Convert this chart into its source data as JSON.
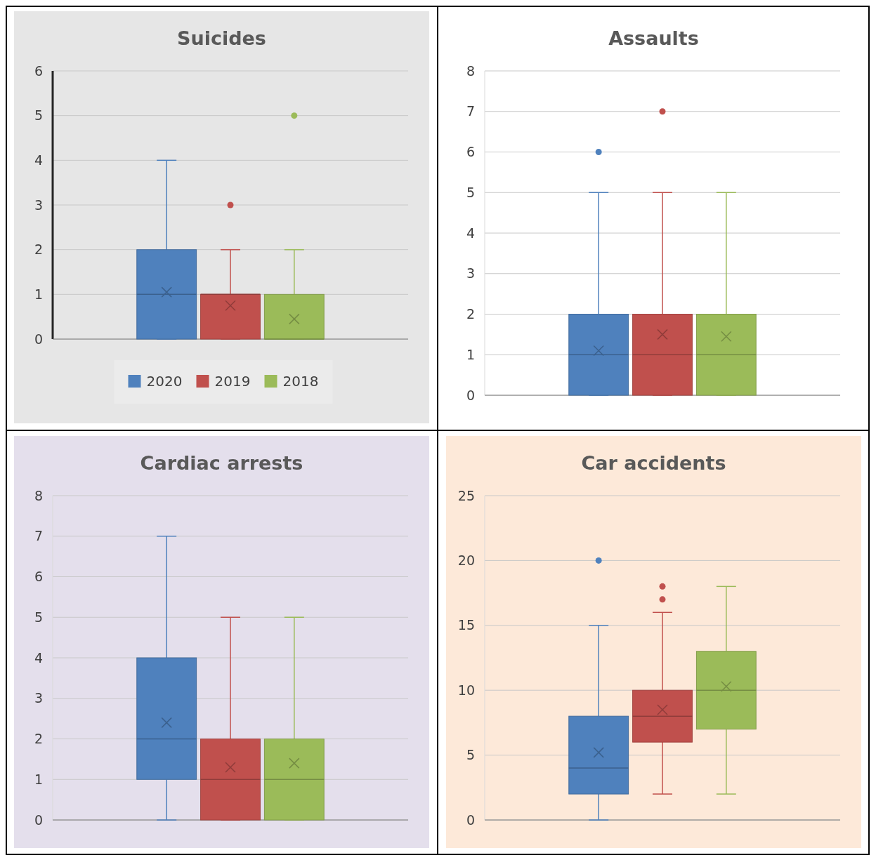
{
  "chart_data": [
    {
      "type": "box",
      "title": "Suicides",
      "categories": [
        null
      ],
      "ylim": [
        0,
        6
      ],
      "yticks": [
        0,
        1,
        2,
        3,
        4,
        5,
        6
      ],
      "grid": "y",
      "legend": "bottom",
      "series": [
        {
          "name": "2020",
          "color": "#4f81bd",
          "boxes": [
            {
              "low": 0,
              "q1": 0,
              "median": 1,
              "q3": 2,
              "high": 4,
              "mean": 1.05
            }
          ]
        },
        {
          "name": "2019",
          "color": "#c0504d",
          "boxes": [
            {
              "low": 0,
              "q1": 0,
              "median": 1,
              "q3": 1,
              "high": 2,
              "mean": 0.75,
              "outliers": [
                3
              ]
            }
          ]
        },
        {
          "name": "2018",
          "color": "#9bbb59",
          "boxes": [
            {
              "low": 0,
              "q1": 0,
              "median": 0,
              "q3": 1,
              "high": 2,
              "mean": 0.45,
              "outliers": [
                5
              ]
            }
          ]
        }
      ]
    },
    {
      "type": "box",
      "title": "Assaults",
      "categories": [
        null
      ],
      "ylim": [
        0,
        8
      ],
      "yticks": [
        0,
        1,
        2,
        3,
        4,
        5,
        6,
        7,
        8
      ],
      "grid": "y",
      "series": [
        {
          "color": "#4f81bd",
          "boxes": [
            {
              "low": 0,
              "q1": 0,
              "median": 1,
              "q3": 2,
              "high": 5,
              "mean": 1.1,
              "outliers": [
                6
              ]
            }
          ]
        },
        {
          "color": "#c0504d",
          "boxes": [
            {
              "low": 0,
              "q1": 0,
              "median": 1,
              "q3": 2,
              "high": 5,
              "mean": 1.5,
              "outliers": [
                7
              ]
            }
          ]
        },
        {
          "color": "#9bbb59",
          "boxes": [
            {
              "low": 0,
              "q1": 0,
              "median": 1,
              "q3": 2,
              "high": 5,
              "mean": 1.45
            }
          ]
        }
      ]
    },
    {
      "type": "box",
      "title": "Cardiac arrests",
      "categories": [
        null
      ],
      "ylim": [
        0,
        8
      ],
      "yticks": [
        0,
        1,
        2,
        3,
        4,
        5,
        6,
        7,
        8
      ],
      "grid": "y",
      "series": [
        {
          "color": "#4f81bd",
          "boxes": [
            {
              "low": 0,
              "q1": 1,
              "median": 2,
              "q3": 4,
              "high": 7,
              "mean": 2.4
            }
          ]
        },
        {
          "color": "#c0504d",
          "boxes": [
            {
              "low": 0,
              "q1": 0,
              "median": 1,
              "q3": 2,
              "high": 5,
              "mean": 1.3
            }
          ]
        },
        {
          "color": "#9bbb59",
          "boxes": [
            {
              "low": 0,
              "q1": 0,
              "median": 1,
              "q3": 2,
              "high": 5,
              "mean": 1.4
            }
          ]
        }
      ]
    },
    {
      "type": "box",
      "title": "Car accidents",
      "categories": [
        null
      ],
      "ylim": [
        0,
        25
      ],
      "yticks": [
        0,
        5,
        10,
        15,
        20,
        25
      ],
      "grid": "y",
      "series": [
        {
          "color": "#4f81bd",
          "boxes": [
            {
              "low": 0,
              "q1": 2,
              "median": 4,
              "q3": 8,
              "high": 15,
              "mean": 5.2,
              "outliers": [
                20
              ]
            }
          ]
        },
        {
          "color": "#c0504d",
          "boxes": [
            {
              "low": 2,
              "q1": 6,
              "median": 8,
              "q3": 10,
              "high": 16,
              "mean": 8.5,
              "outliers": [
                17,
                18
              ]
            }
          ]
        },
        {
          "color": "#9bbb59",
          "boxes": [
            {
              "low": 2,
              "q1": 7,
              "median": 10,
              "q3": 13,
              "high": 18,
              "mean": 10.3
            }
          ]
        }
      ]
    }
  ]
}
